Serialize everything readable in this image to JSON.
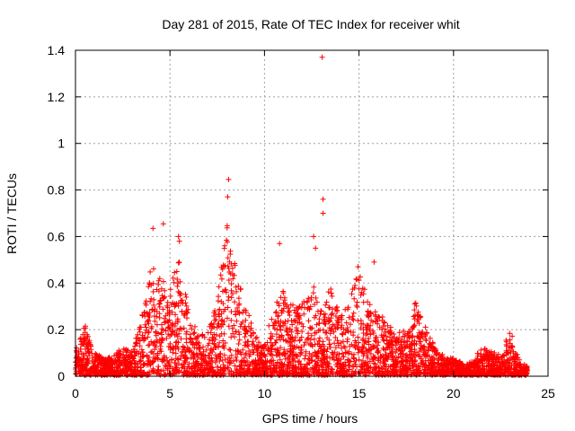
{
  "chart_data": {
    "type": "scatter",
    "title": "Day 281 of 2015, Rate Of TEC Index for receiver whit",
    "xlabel": "GPS time / hours",
    "ylabel": "ROTI / TECUs",
    "xlim": [
      0,
      25
    ],
    "ylim": [
      0,
      1.4
    ],
    "xticks": [
      "0",
      "5",
      "10",
      "15",
      "20",
      "25"
    ],
    "yticks": [
      "0",
      "0.2",
      "0.4",
      "0.6",
      "0.8",
      "1",
      "1.2",
      "1.4"
    ],
    "grid": true,
    "marker": "+",
    "color": "#ff0000",
    "series": [
      {
        "name": "ROTI",
        "notable_points": [
          {
            "x": 13.05,
            "y": 1.37
          },
          {
            "x": 8.1,
            "y": 0.845
          },
          {
            "x": 8.05,
            "y": 0.77
          },
          {
            "x": 13.1,
            "y": 0.76
          },
          {
            "x": 13.1,
            "y": 0.7
          },
          {
            "x": 4.65,
            "y": 0.655
          },
          {
            "x": 4.1,
            "y": 0.635
          },
          {
            "x": 12.6,
            "y": 0.6
          },
          {
            "x": 5.45,
            "y": 0.6
          },
          {
            "x": 5.5,
            "y": 0.58
          },
          {
            "x": 10.8,
            "y": 0.57
          },
          {
            "x": 12.7,
            "y": 0.55
          },
          {
            "x": 15.8,
            "y": 0.49
          },
          {
            "x": 14.95,
            "y": 0.47
          }
        ],
        "envelope": [
          {
            "x": 0.0,
            "y": 0.1
          },
          {
            "x": 0.5,
            "y": 0.22
          },
          {
            "x": 1.0,
            "y": 0.1
          },
          {
            "x": 1.5,
            "y": 0.07
          },
          {
            "x": 2.0,
            "y": 0.08
          },
          {
            "x": 2.5,
            "y": 0.12
          },
          {
            "x": 3.0,
            "y": 0.1
          },
          {
            "x": 3.5,
            "y": 0.25
          },
          {
            "x": 4.0,
            "y": 0.47
          },
          {
            "x": 4.5,
            "y": 0.42
          },
          {
            "x": 5.0,
            "y": 0.4
          },
          {
            "x": 5.5,
            "y": 0.5
          },
          {
            "x": 6.0,
            "y": 0.28
          },
          {
            "x": 6.5,
            "y": 0.18
          },
          {
            "x": 7.0,
            "y": 0.18
          },
          {
            "x": 7.5,
            "y": 0.33
          },
          {
            "x": 8.0,
            "y": 0.65
          },
          {
            "x": 8.5,
            "y": 0.45
          },
          {
            "x": 9.0,
            "y": 0.3
          },
          {
            "x": 9.5,
            "y": 0.18
          },
          {
            "x": 10.0,
            "y": 0.14
          },
          {
            "x": 10.5,
            "y": 0.3
          },
          {
            "x": 11.0,
            "y": 0.37
          },
          {
            "x": 11.5,
            "y": 0.3
          },
          {
            "x": 12.0,
            "y": 0.33
          },
          {
            "x": 12.5,
            "y": 0.42
          },
          {
            "x": 13.0,
            "y": 0.3
          },
          {
            "x": 13.5,
            "y": 0.38
          },
          {
            "x": 14.0,
            "y": 0.25
          },
          {
            "x": 14.5,
            "y": 0.35
          },
          {
            "x": 15.0,
            "y": 0.45
          },
          {
            "x": 15.5,
            "y": 0.32
          },
          {
            "x": 16.0,
            "y": 0.28
          },
          {
            "x": 16.5,
            "y": 0.22
          },
          {
            "x": 17.0,
            "y": 0.18
          },
          {
            "x": 17.5,
            "y": 0.2
          },
          {
            "x": 18.0,
            "y": 0.32
          },
          {
            "x": 18.5,
            "y": 0.22
          },
          {
            "x": 19.0,
            "y": 0.12
          },
          {
            "x": 19.5,
            "y": 0.08
          },
          {
            "x": 20.0,
            "y": 0.07
          },
          {
            "x": 20.5,
            "y": 0.05
          },
          {
            "x": 21.0,
            "y": 0.06
          },
          {
            "x": 21.5,
            "y": 0.12
          },
          {
            "x": 22.0,
            "y": 0.1
          },
          {
            "x": 22.5,
            "y": 0.08
          },
          {
            "x": 23.0,
            "y": 0.2
          },
          {
            "x": 23.5,
            "y": 0.06
          },
          {
            "x": 23.8,
            "y": 0.04
          }
        ],
        "x_range": [
          0,
          23.9
        ]
      }
    ]
  }
}
